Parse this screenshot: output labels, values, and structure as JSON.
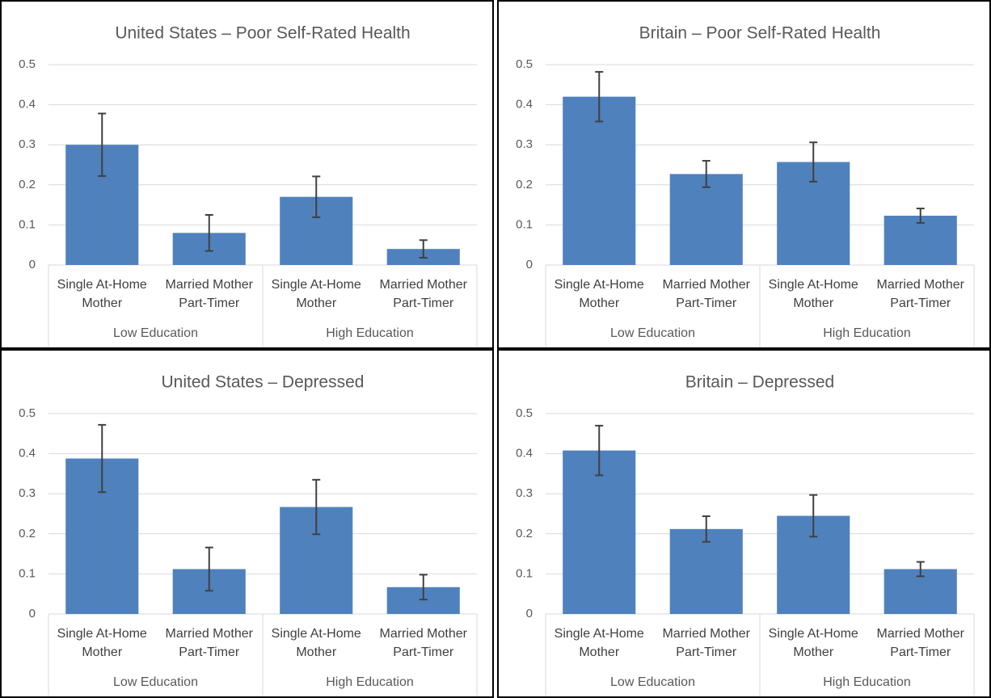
{
  "chart_data": [
    {
      "type": "bar",
      "title": "United States – Poor Self-Rated Health",
      "groups": [
        "Low Education",
        "High Education"
      ],
      "categories": [
        "Single At-Home Mother",
        "Married Mother Part-Timer",
        "Single At-Home Mother",
        "Married Mother Part-Timer"
      ],
      "values": [
        0.3,
        0.08,
        0.17,
        0.04
      ],
      "errors": [
        0.078,
        0.045,
        0.051,
        0.022
      ],
      "color": "#4f81bd",
      "ylim": [
        0,
        0.5
      ],
      "yticks": [
        0,
        0.1,
        0.2,
        0.3,
        0.4,
        0.5
      ],
      "grid": true
    },
    {
      "type": "bar",
      "title": "Britain – Poor Self-Rated Health",
      "groups": [
        "Low Education",
        "High Education"
      ],
      "categories": [
        "Single At-Home Mother",
        "Married Mother Part-Timer",
        "Single At-Home Mother",
        "Married Mother Part-Timer"
      ],
      "values": [
        0.42,
        0.227,
        0.257,
        0.123
      ],
      "errors": [
        0.062,
        0.033,
        0.049,
        0.018
      ],
      "color": "#4f81bd",
      "ylim": [
        0,
        0.5
      ],
      "yticks": [
        0,
        0.1,
        0.2,
        0.3,
        0.4,
        0.5
      ],
      "grid": true
    },
    {
      "type": "bar",
      "title": "United States – Depressed",
      "groups": [
        "Low Education",
        "High Education"
      ],
      "categories": [
        "Single At-Home Mother",
        "Married Mother Part-Timer",
        "Single At-Home Mother",
        "Married Mother Part-Timer"
      ],
      "values": [
        0.388,
        0.112,
        0.267,
        0.067
      ],
      "errors": [
        0.084,
        0.054,
        0.068,
        0.031
      ],
      "color": "#4f81bd",
      "ylim": [
        0,
        0.5
      ],
      "yticks": [
        0,
        0.1,
        0.2,
        0.3,
        0.4,
        0.5
      ],
      "grid": true
    },
    {
      "type": "bar",
      "title": "Britain – Depressed",
      "groups": [
        "Low Education",
        "High Education"
      ],
      "categories": [
        "Single At-Home Mother",
        "Married Mother Part-Timer",
        "Single At-Home Mother",
        "Married Mother Part-Timer"
      ],
      "values": [
        0.408,
        0.212,
        0.245,
        0.112
      ],
      "errors": [
        0.062,
        0.032,
        0.052,
        0.018
      ],
      "color": "#4f81bd",
      "ylim": [
        0,
        0.5
      ],
      "yticks": [
        0,
        0.1,
        0.2,
        0.3,
        0.4,
        0.5
      ],
      "grid": true
    }
  ]
}
